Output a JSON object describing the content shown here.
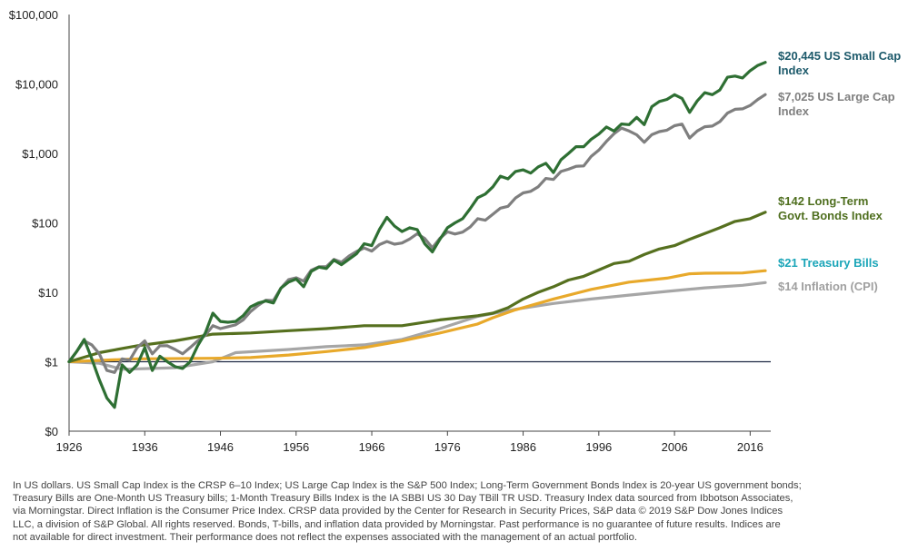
{
  "chart_data": {
    "type": "line",
    "scale": "log",
    "title": "",
    "xlabel": "",
    "ylabel": "",
    "xlim": [
      1926,
      2018
    ],
    "ylim": [
      0.1,
      100000
    ],
    "x_ticks": [
      1926,
      1936,
      1946,
      1956,
      1966,
      1976,
      1986,
      1996,
      2006,
      2016
    ],
    "y_ticks": [
      {
        "value": 0.1,
        "label": "$0"
      },
      {
        "value": 1,
        "label": "$1"
      },
      {
        "value": 10,
        "label": "$10"
      },
      {
        "value": 100,
        "label": "$100"
      },
      {
        "value": 1000,
        "label": "$1,000"
      },
      {
        "value": 10000,
        "label": "$10,000"
      },
      {
        "value": 100000,
        "label": "$100,000"
      }
    ],
    "grid": false,
    "baseline_value": 1,
    "series": [
      {
        "key": "small_cap",
        "label_lines": [
          "$20,445 US Small Cap",
          "Index"
        ],
        "color": "#2e6f33",
        "label_color": "#1d5a6b",
        "points": [
          [
            1926,
            1
          ],
          [
            1927,
            1.4
          ],
          [
            1928,
            2.1
          ],
          [
            1929,
            1.1
          ],
          [
            1930,
            0.55
          ],
          [
            1931,
            0.3
          ],
          [
            1932,
            0.22
          ],
          [
            1933,
            0.9
          ],
          [
            1934,
            0.7
          ],
          [
            1935,
            0.9
          ],
          [
            1936,
            1.6
          ],
          [
            1937,
            0.75
          ],
          [
            1938,
            1.2
          ],
          [
            1939,
            1.0
          ],
          [
            1940,
            0.85
          ],
          [
            1941,
            0.8
          ],
          [
            1942,
            1.0
          ],
          [
            1943,
            1.7
          ],
          [
            1944,
            2.6
          ],
          [
            1945,
            5.0
          ],
          [
            1946,
            3.8
          ],
          [
            1947,
            3.7
          ],
          [
            1948,
            3.8
          ],
          [
            1949,
            4.6
          ],
          [
            1950,
            6.2
          ],
          [
            1951,
            7.0
          ],
          [
            1952,
            7.5
          ],
          [
            1953,
            7.0
          ],
          [
            1954,
            11.5
          ],
          [
            1955,
            14.0
          ],
          [
            1956,
            15.5
          ],
          [
            1957,
            12.0
          ],
          [
            1958,
            20.0
          ],
          [
            1959,
            23.0
          ],
          [
            1960,
            22.0
          ],
          [
            1961,
            29.0
          ],
          [
            1962,
            25.0
          ],
          [
            1963,
            30.0
          ],
          [
            1964,
            36.0
          ],
          [
            1965,
            50.0
          ],
          [
            1966,
            47.0
          ],
          [
            1967,
            80.0
          ],
          [
            1968,
            120.0
          ],
          [
            1969,
            90.0
          ],
          [
            1970,
            75.0
          ],
          [
            1971,
            85.0
          ],
          [
            1972,
            80.0
          ],
          [
            1973,
            50.0
          ],
          [
            1974,
            38.0
          ],
          [
            1975,
            58.0
          ],
          [
            1976,
            85.0
          ],
          [
            1977,
            100.0
          ],
          [
            1978,
            115.0
          ],
          [
            1979,
            160.0
          ],
          [
            1980,
            230.0
          ],
          [
            1981,
            260.0
          ],
          [
            1982,
            330.0
          ],
          [
            1983,
            470.0
          ],
          [
            1984,
            430.0
          ],
          [
            1985,
            550.0
          ],
          [
            1986,
            580.0
          ],
          [
            1987,
            520.0
          ],
          [
            1988,
            640.0
          ],
          [
            1989,
            720.0
          ],
          [
            1990,
            530.0
          ],
          [
            1991,
            810.0
          ],
          [
            1992,
            1000.0
          ],
          [
            1993,
            1250.0
          ],
          [
            1994,
            1250.0
          ],
          [
            1995,
            1600.0
          ],
          [
            1996,
            1900.0
          ],
          [
            1997,
            2400.0
          ],
          [
            1998,
            2100.0
          ],
          [
            1999,
            2650.0
          ],
          [
            2000,
            2600.0
          ],
          [
            2001,
            3300.0
          ],
          [
            2002,
            2600.0
          ],
          [
            2003,
            4700.0
          ],
          [
            2004,
            5600.0
          ],
          [
            2005,
            6000.0
          ],
          [
            2006,
            7000.0
          ],
          [
            2007,
            6200.0
          ],
          [
            2008,
            3900.0
          ],
          [
            2009,
            5700.0
          ],
          [
            2010,
            7500.0
          ],
          [
            2011,
            7000.0
          ],
          [
            2012,
            8200.0
          ],
          [
            2013,
            12500.0
          ],
          [
            2014,
            13000.0
          ],
          [
            2015,
            12200.0
          ],
          [
            2016,
            15500.0
          ],
          [
            2017,
            18500.0
          ],
          [
            2018,
            20445.0
          ]
        ]
      },
      {
        "key": "large_cap",
        "label_lines": [
          "$7,025 US Large Cap",
          "Index"
        ],
        "color": "#7f7f7f",
        "label_color": "#7f7f7f",
        "points": [
          [
            1926,
            1
          ],
          [
            1927,
            1.4
          ],
          [
            1928,
            2.0
          ],
          [
            1929,
            1.75
          ],
          [
            1930,
            1.3
          ],
          [
            1931,
            0.75
          ],
          [
            1932,
            0.7
          ],
          [
            1933,
            1.1
          ],
          [
            1934,
            1.05
          ],
          [
            1935,
            1.6
          ],
          [
            1936,
            2.0
          ],
          [
            1937,
            1.3
          ],
          [
            1938,
            1.7
          ],
          [
            1939,
            1.7
          ],
          [
            1940,
            1.5
          ],
          [
            1941,
            1.3
          ],
          [
            1942,
            1.6
          ],
          [
            1943,
            2.0
          ],
          [
            1944,
            2.4
          ],
          [
            1945,
            3.3
          ],
          [
            1946,
            3.0
          ],
          [
            1947,
            3.2
          ],
          [
            1948,
            3.4
          ],
          [
            1949,
            4.0
          ],
          [
            1950,
            5.3
          ],
          [
            1951,
            6.5
          ],
          [
            1952,
            7.7
          ],
          [
            1953,
            7.6
          ],
          [
            1954,
            11.5
          ],
          [
            1955,
            15.2
          ],
          [
            1956,
            16.2
          ],
          [
            1957,
            14.5
          ],
          [
            1958,
            20.8
          ],
          [
            1959,
            23.3
          ],
          [
            1960,
            23.4
          ],
          [
            1961,
            29.7
          ],
          [
            1962,
            27.1
          ],
          [
            1963,
            33.3
          ],
          [
            1964,
            38.7
          ],
          [
            1965,
            43.5
          ],
          [
            1966,
            39.2
          ],
          [
            1967,
            48.5
          ],
          [
            1968,
            53.9
          ],
          [
            1969,
            49.3
          ],
          [
            1970,
            51.3
          ],
          [
            1971,
            58.6
          ],
          [
            1972,
            69.7
          ],
          [
            1973,
            59.5
          ],
          [
            1974,
            43.7
          ],
          [
            1975,
            60.0
          ],
          [
            1976,
            74.3
          ],
          [
            1977,
            69.0
          ],
          [
            1978,
            73.5
          ],
          [
            1979,
            87.0
          ],
          [
            1980,
            115.0
          ],
          [
            1981,
            109.0
          ],
          [
            1982,
            133.0
          ],
          [
            1983,
            163.0
          ],
          [
            1984,
            173.0
          ],
          [
            1985,
            228.0
          ],
          [
            1986,
            270.0
          ],
          [
            1987,
            284.0
          ],
          [
            1988,
            331.0
          ],
          [
            1989,
            436.0
          ],
          [
            1990,
            422.0
          ],
          [
            1991,
            550.0
          ],
          [
            1992,
            592.0
          ],
          [
            1993,
            652.0
          ],
          [
            1994,
            660.0
          ],
          [
            1995,
            907.0
          ],
          [
            1996,
            1116.0
          ],
          [
            1997,
            1488.0
          ],
          [
            1998,
            1913.0
          ],
          [
            1999,
            2316.0
          ],
          [
            2000,
            2105.0
          ],
          [
            2001,
            1855.0
          ],
          [
            2002,
            1445.0
          ],
          [
            2003,
            1860.0
          ],
          [
            2004,
            2062.0
          ],
          [
            2005,
            2163.0
          ],
          [
            2006,
            2505.0
          ],
          [
            2007,
            2643.0
          ],
          [
            2008,
            1665.0
          ],
          [
            2009,
            2106.0
          ],
          [
            2010,
            2423.0
          ],
          [
            2011,
            2474.0
          ],
          [
            2012,
            2870.0
          ],
          [
            2013,
            3800.0
          ],
          [
            2014,
            4319.0
          ],
          [
            2015,
            4379.0
          ],
          [
            2016,
            4903.0
          ],
          [
            2017,
            5973.0
          ],
          [
            2018,
            7025.0
          ]
        ]
      },
      {
        "key": "lt_bonds",
        "label_lines": [
          "$142 Long-Term",
          "Govt. Bonds Index"
        ],
        "color": "#56701f",
        "label_color": "#4f6f1f",
        "points": [
          [
            1926,
            1
          ],
          [
            1930,
            1.35
          ],
          [
            1935,
            1.7
          ],
          [
            1940,
            2.0
          ],
          [
            1945,
            2.5
          ],
          [
            1950,
            2.6
          ],
          [
            1955,
            2.8
          ],
          [
            1960,
            3.0
          ],
          [
            1965,
            3.3
          ],
          [
            1970,
            3.3
          ],
          [
            1975,
            4.0
          ],
          [
            1980,
            4.6
          ],
          [
            1982,
            5.0
          ],
          [
            1984,
            6.0
          ],
          [
            1986,
            8.0
          ],
          [
            1988,
            10.0
          ],
          [
            1990,
            12.0
          ],
          [
            1992,
            15.0
          ],
          [
            1994,
            17.0
          ],
          [
            1996,
            21.0
          ],
          [
            1998,
            26.0
          ],
          [
            2000,
            28.0
          ],
          [
            2002,
            35.0
          ],
          [
            2004,
            42.0
          ],
          [
            2006,
            47.0
          ],
          [
            2008,
            58.0
          ],
          [
            2010,
            70.0
          ],
          [
            2012,
            85.0
          ],
          [
            2014,
            105.0
          ],
          [
            2016,
            115.0
          ],
          [
            2018,
            142.0
          ]
        ]
      },
      {
        "key": "tbills",
        "label_lines": [
          "$21 Treasury Bills"
        ],
        "color": "#e8a92b",
        "label_color": "#1aa5b8",
        "points": [
          [
            1926,
            1
          ],
          [
            1935,
            1.1
          ],
          [
            1945,
            1.12
          ],
          [
            1950,
            1.15
          ],
          [
            1955,
            1.25
          ],
          [
            1960,
            1.4
          ],
          [
            1965,
            1.6
          ],
          [
            1970,
            2.0
          ],
          [
            1975,
            2.6
          ],
          [
            1980,
            3.5
          ],
          [
            1982,
            4.3
          ],
          [
            1985,
            5.6
          ],
          [
            1990,
            8.0
          ],
          [
            1995,
            11.0
          ],
          [
            2000,
            14.0
          ],
          [
            2005,
            16.0
          ],
          [
            2008,
            18.5
          ],
          [
            2010,
            18.8
          ],
          [
            2015,
            19.0
          ],
          [
            2018,
            20.5
          ]
        ]
      },
      {
        "key": "inflation",
        "label_lines": [
          "$14 Inflation (CPI)"
        ],
        "color": "#a6a6a6",
        "label_color": "#a0a0a0",
        "points": [
          [
            1926,
            1
          ],
          [
            1930,
            0.95
          ],
          [
            1933,
            0.78
          ],
          [
            1940,
            0.82
          ],
          [
            1945,
            1.0
          ],
          [
            1948,
            1.35
          ],
          [
            1955,
            1.5
          ],
          [
            1960,
            1.65
          ],
          [
            1965,
            1.75
          ],
          [
            1970,
            2.1
          ],
          [
            1975,
            3.0
          ],
          [
            1980,
            4.5
          ],
          [
            1985,
            5.7
          ],
          [
            1990,
            6.9
          ],
          [
            1995,
            8.0
          ],
          [
            2000,
            9.1
          ],
          [
            2005,
            10.3
          ],
          [
            2010,
            11.6
          ],
          [
            2015,
            12.6
          ],
          [
            2018,
            13.8
          ]
        ]
      }
    ]
  },
  "footnote_lines": [
    "In US dollars. US Small Cap Index is the CRSP 6–10 Index; US Large Cap Index is the S&P 500 Index; Long-Term Government Bonds Index is 20-year US government bonds;",
    "Treasury Bills are One-Month US Treasury bills; 1-Month Treasury Bills Index is the IA SBBI US 30 Day TBill TR USD. Treasury Index data sourced from Ibbotson Associates,",
    "via Morningstar. Direct Inflation is the Consumer Price Index. CRSP data provided by the Center for Research in Security Prices, S&P data © 2019 S&P Dow Jones Indices",
    "LLC, a division of S&P Global. All rights reserved. Bonds, T-bills, and inflation data provided by Morningstar. Past performance is no guarantee of future results. Indices are",
    "not available for direct investment. Their performance does not reflect the expenses associated with the management of an actual portfolio."
  ]
}
